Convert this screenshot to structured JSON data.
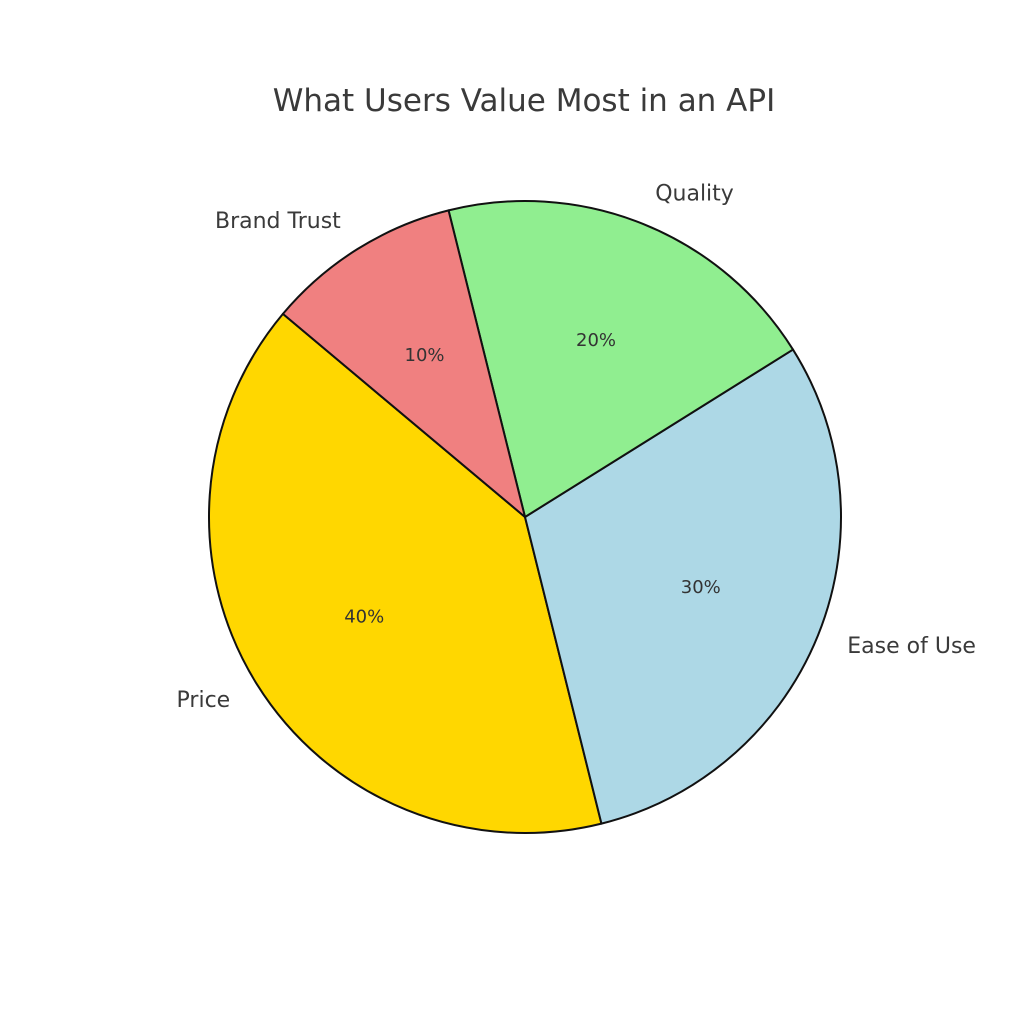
{
  "chart_data": {
    "type": "pie",
    "title": "What Users Value Most in an API",
    "start_angle_deg": 140,
    "direction": "counterclockwise",
    "slices": [
      {
        "label": "Price",
        "value": 40,
        "pct_label": "40%",
        "color": "#FFD700"
      },
      {
        "label": "Ease of Use",
        "value": 30,
        "pct_label": "30%",
        "color": "#ADD8E6"
      },
      {
        "label": "Quality",
        "value": 20,
        "pct_label": "20%",
        "color": "#90EE90"
      },
      {
        "label": "Brand Trust",
        "value": 10,
        "pct_label": "10%",
        "color": "#F08080"
      }
    ],
    "edge_color": "#111111"
  }
}
